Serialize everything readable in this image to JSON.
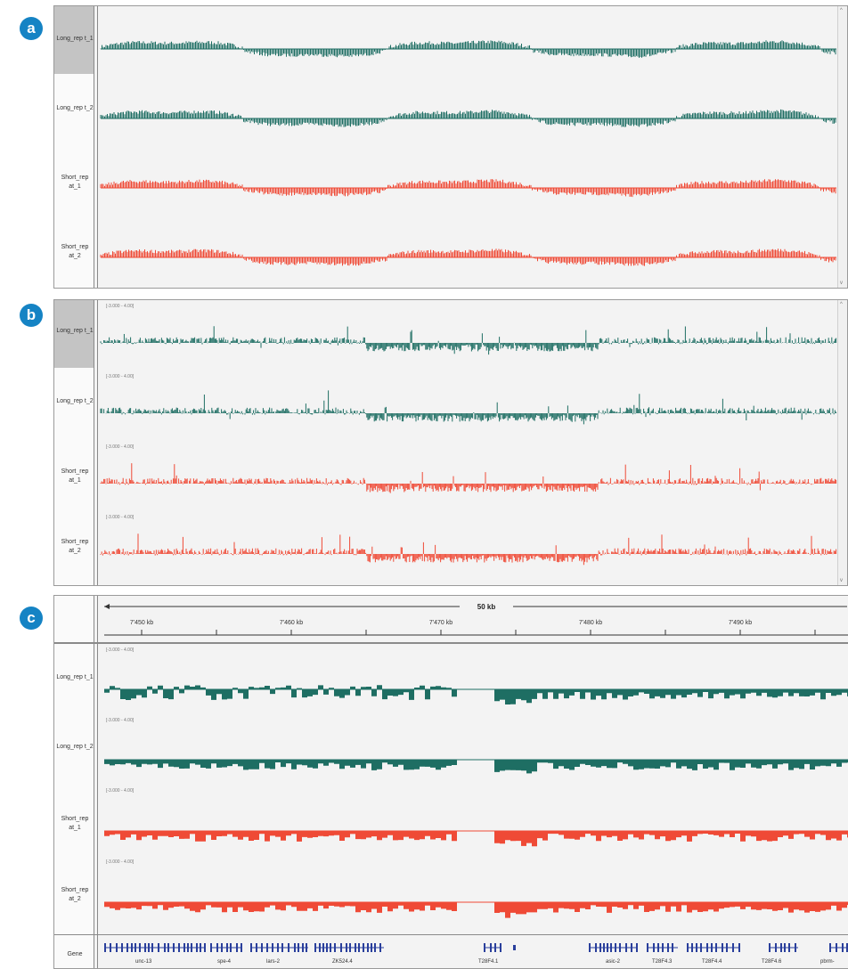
{
  "badges": {
    "a": "a",
    "b": "b",
    "c": "c"
  },
  "colors": {
    "long": "#1e6e63",
    "short": "#ef4a36",
    "gene": "#2a3f9c"
  },
  "panel_a": {
    "tracks": [
      {
        "name": "Long_rep t_1",
        "type": "long"
      },
      {
        "name": "Long_rep t_2",
        "type": "long"
      },
      {
        "name": "Short_rep at_1",
        "type": "short"
      },
      {
        "name": "Short_rep at_2",
        "type": "short"
      }
    ]
  },
  "panel_b": {
    "tracks": [
      {
        "name": "Long_rep t_1",
        "type": "long",
        "range": "[-3.000 - 4.00]"
      },
      {
        "name": "Long_rep t_2",
        "type": "long",
        "range": "[-3.000 - 4.00]"
      },
      {
        "name": "Short_rep at_1",
        "type": "short",
        "range": "[-3.000 - 4.00]"
      },
      {
        "name": "Short_rep at_2",
        "type": "short",
        "range": "[-3.000 - 4.00]"
      }
    ]
  },
  "panel_c": {
    "ruler": {
      "span_label": "50 kb",
      "ticks": [
        "7'450 kb",
        "7'460 kb",
        "7'470 kb",
        "7'480 kb",
        "7'490 kb"
      ]
    },
    "tracks": [
      {
        "name": "Long_rep t_1",
        "type": "long",
        "range": "[-3.000 - 4.00]"
      },
      {
        "name": "Long_rep t_2",
        "type": "long",
        "range": "[-3.000 - 4.00]"
      },
      {
        "name": "Short_rep at_1",
        "type": "short",
        "range": "[-3.000 - 4.00]"
      },
      {
        "name": "Short_rep at_2",
        "type": "short",
        "range": "[-3.000 - 4.00]"
      }
    ],
    "gene_track_name": "Gene",
    "genes": [
      "unc-13",
      "spe-4",
      "lars-2",
      "ZK524.4",
      "T28F4.1",
      "asic-2",
      "T28F4.3",
      "T28F4.4",
      "T28F4.6",
      "pbrm-"
    ]
  }
}
